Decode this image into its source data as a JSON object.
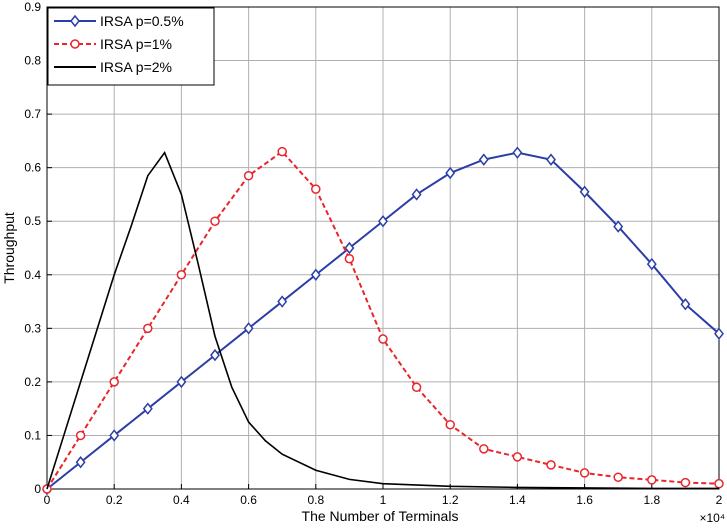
{
  "chart_data": {
    "type": "line",
    "title": "",
    "xlabel": "The Number of Terminals",
    "ylabel": "Throughput",
    "x_multiplier_label": "×10⁴",
    "xlim": [
      0,
      2
    ],
    "ylim": [
      0,
      0.9
    ],
    "x_ticks": [
      "0",
      "0.2",
      "0.4",
      "0.6",
      "0.8",
      "1",
      "1.2",
      "1.4",
      "1.6",
      "1.8",
      "2"
    ],
    "y_ticks": [
      "0",
      "0.1",
      "0.2",
      "0.3",
      "0.4",
      "0.5",
      "0.6",
      "0.7",
      "0.8",
      "0.9"
    ],
    "grid": true,
    "legend_position": "top-left",
    "series": [
      {
        "name": "IRSA p=0.5%",
        "color": "#2b3ea8",
        "line_style": "solid",
        "marker": "diamond",
        "x": [
          0,
          0.1,
          0.2,
          0.3,
          0.4,
          0.5,
          0.6,
          0.7,
          0.8,
          0.9,
          1.0,
          1.1,
          1.2,
          1.3,
          1.4,
          1.5,
          1.6,
          1.7,
          1.8,
          1.9,
          2.0
        ],
        "y": [
          0,
          0.05,
          0.1,
          0.15,
          0.2,
          0.25,
          0.3,
          0.35,
          0.4,
          0.45,
          0.5,
          0.55,
          0.59,
          0.615,
          0.628,
          0.615,
          0.555,
          0.49,
          0.42,
          0.345,
          0.29
        ]
      },
      {
        "name": "IRSA p=1%",
        "color": "#e8262b",
        "line_style": "dashed",
        "marker": "circle",
        "x": [
          0,
          0.1,
          0.2,
          0.3,
          0.4,
          0.5,
          0.6,
          0.7,
          0.8,
          0.9,
          1.0,
          1.1,
          1.2,
          1.3,
          1.4,
          1.5,
          1.6,
          1.7,
          1.8,
          1.9,
          2.0
        ],
        "y": [
          0,
          0.1,
          0.2,
          0.3,
          0.4,
          0.5,
          0.585,
          0.63,
          0.56,
          0.43,
          0.28,
          0.19,
          0.12,
          0.075,
          0.06,
          0.045,
          0.03,
          0.022,
          0.017,
          0.012,
          0.01
        ]
      },
      {
        "name": "IRSA p=2%",
        "color": "#000000",
        "line_style": "solid",
        "marker": "none",
        "x": [
          0,
          0.05,
          0.1,
          0.15,
          0.2,
          0.25,
          0.3,
          0.35,
          0.4,
          0.45,
          0.5,
          0.55,
          0.6,
          0.65,
          0.7,
          0.8,
          0.9,
          1.0,
          1.2,
          1.4,
          1.6,
          1.8,
          2.0
        ],
        "y": [
          0,
          0.1,
          0.2,
          0.3,
          0.4,
          0.49,
          0.585,
          0.628,
          0.55,
          0.42,
          0.285,
          0.19,
          0.125,
          0.09,
          0.065,
          0.035,
          0.018,
          0.01,
          0.005,
          0.003,
          0.002,
          0.001,
          0.001
        ]
      }
    ]
  }
}
